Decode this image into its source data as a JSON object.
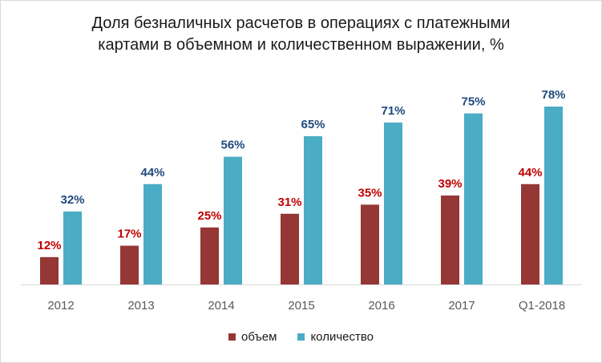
{
  "title_line1": "Доля безналичных расчетов в операциях с платежными",
  "title_line2": "картами в объемном и количественном выражении, %",
  "colors": {
    "volume": "#953735",
    "count": "#4bacc6",
    "volume_label": "#c00000",
    "count_label": "#1f497d",
    "axis": "#d9d9d9"
  },
  "legend": {
    "volume": "объем",
    "count": "количество"
  },
  "chart_data": {
    "type": "bar",
    "title": "Доля безналичных расчетов в операциях с платежными картами в объемном и количественном выражении, %",
    "categories": [
      "2012",
      "2013",
      "2014",
      "2015",
      "2016",
      "2017",
      "Q1-2018"
    ],
    "series": [
      {
        "name": "объем",
        "values": [
          12,
          17,
          25,
          31,
          35,
          39,
          44
        ],
        "labels": [
          "12%",
          "17%",
          "25%",
          "31%",
          "35%",
          "39%",
          "44%"
        ]
      },
      {
        "name": "количество",
        "values": [
          32,
          44,
          56,
          65,
          71,
          75,
          78
        ],
        "labels": [
          "32%",
          "44%",
          "56%",
          "65%",
          "71%",
          "75%",
          "78%"
        ]
      }
    ],
    "xlabel": "",
    "ylabel": "",
    "ylim": [
      0,
      78
    ],
    "grid": false,
    "legend_position": "bottom"
  }
}
